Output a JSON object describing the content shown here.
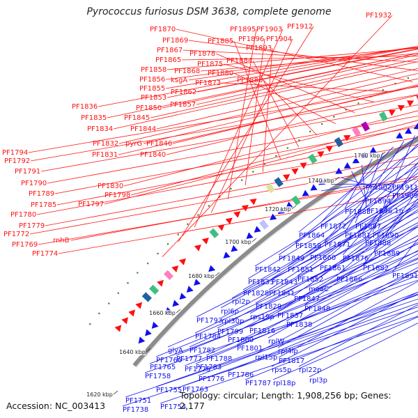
{
  "title": "Pyrococcus furiosus DSM 3638, complete genome",
  "footer": {
    "accession": "Accession: NC_003413",
    "summary": "Topology: circular; Length: 1,908,256 bp; Genes: 2,177"
  },
  "colors": {
    "forward": "#ff1010",
    "reverse": "#1010ee",
    "backbone": "#8c8c8c"
  },
  "ticks": [
    "1620 kbp",
    "1640 kbp",
    "1660 kbp",
    "1680 kbp",
    "1700 kbp",
    "1720 kbp",
    "1740 kbp",
    "1760 kbp"
  ],
  "forward_labels": [
    "PF1932",
    "PF1912",
    "PF1903",
    "PF1904",
    "PF1895",
    "PF1896",
    "PF1893",
    "PF1885",
    "PF1884",
    "PF1886",
    "PF1880",
    "PF1878",
    "PF1875",
    "PF1873",
    "PF1870",
    "PF1869",
    "PF1867",
    "PF1865",
    "PF1868",
    "PF1858",
    "PF1856",
    "ksgA",
    "PF1855",
    "PF1862",
    "PF1853",
    "PF1857",
    "PF1850",
    "PF1836",
    "PF1835",
    "PF1845",
    "PF1834",
    "PF1844",
    "PF1832",
    "pyrG",
    "PF1846",
    "PF1831",
    "PF1840",
    "PF1830",
    "PF1798",
    "PF1797",
    "PF1794",
    "PF1792",
    "PF1791",
    "PF1790",
    "PF1789",
    "PF1785",
    "PF1780",
    "PF1779",
    "PF1772",
    "rnhB",
    "PF1769",
    "PF1774"
  ],
  "reverse_labels": [
    "PF1902",
    "PF1911",
    "PF1909",
    "PF1894",
    "PF1896.1n",
    "PF1883",
    "PF1887",
    "PF1872",
    "PF1881",
    "PF1890",
    "PF1864",
    "PF1871",
    "PF1888",
    "PF1859",
    "PF1876",
    "PF1889",
    "PF1860",
    "PF1882",
    "PF1849",
    "PF1861",
    "PF1891",
    "PF1851",
    "PF1866",
    "PF1842",
    "PF1852",
    "moaC",
    "PF1833",
    "PF1843",
    "PF1841",
    "PF1847",
    "PF1828",
    "rpl2p",
    "PF1848",
    "PF1829",
    "rpl6p",
    "PF1837",
    "rps19p",
    "rpl30p",
    "PF1793",
    "PF1838",
    "PF1799",
    "PF1816",
    "PF1800",
    "rplW",
    "PF1784",
    "PF1801",
    "rpl4lp",
    "rpl15p",
    "PF1817",
    "PF1782",
    "glyA",
    "PF1788",
    "rps5p",
    "rpl22p",
    "PF1766",
    "PF1777",
    "PF1783",
    "rpl3p",
    "PF1765",
    "PF1775",
    "PF1786",
    "rpl18p",
    "PF1776",
    "PF1787",
    "PF1758",
    "PF1755",
    "PF1763",
    "PF1751",
    "PF1738",
    "PF1754"
  ]
}
